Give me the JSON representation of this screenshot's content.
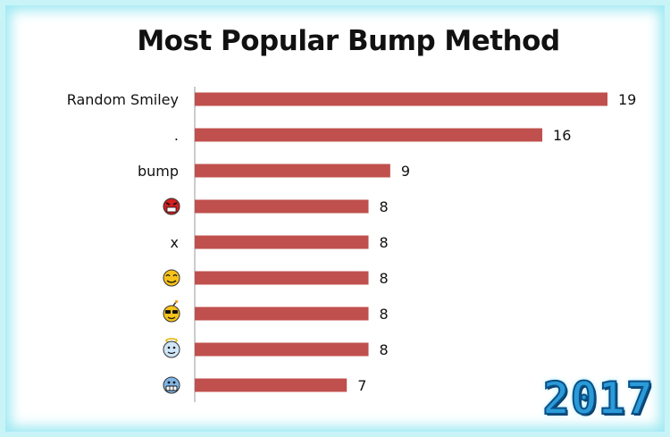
{
  "chart_data": {
    "type": "bar",
    "orientation": "horizontal",
    "title": "Most Popular Bump Method",
    "categories": [
      {
        "label": "Random Smiley",
        "icon": null
      },
      {
        "label": ".",
        "icon": null
      },
      {
        "label": "bump",
        "icon": null
      },
      {
        "label": "",
        "icon": "angry-devil-smiley-icon"
      },
      {
        "label": "x",
        "icon": null
      },
      {
        "label": "",
        "icon": "content-smiley-icon"
      },
      {
        "label": "",
        "icon": "cool-bomb-smiley-icon"
      },
      {
        "label": "",
        "icon": "angel-smiley-icon"
      },
      {
        "label": "",
        "icon": "grimace-smiley-icon"
      }
    ],
    "values": [
      19,
      16,
      9,
      8,
      8,
      8,
      8,
      8,
      7
    ],
    "xlim": [
      0,
      19
    ],
    "bar_color": "#c0504d",
    "grid": false,
    "data_labels": true
  },
  "badge": {
    "year": "2017"
  },
  "colors": {
    "frame": "#c8f4f8",
    "axis": "#9a9a9a"
  }
}
